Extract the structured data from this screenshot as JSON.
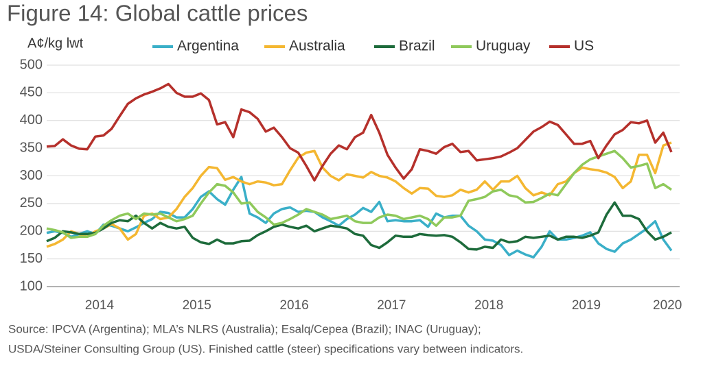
{
  "chart_data": {
    "type": "line",
    "title": "Figure 14: Global cattle prices",
    "y_label": "A¢/kg lwt",
    "source": [
      "Source: IPCVA (Argentina); MLA’s NLRS (Australia); Esalq/Cepea (Brazil); INAC (Uruguay);",
      "USDA/Steiner Consulting Group (US). Finished cattle (steer) specifications vary between indicators."
    ],
    "categories": [
      null,
      null,
      null,
      null,
      null,
      null,
      "2014",
      null,
      null,
      null,
      null,
      null,
      null,
      null,
      null,
      null,
      null,
      null,
      "2015",
      null,
      null,
      null,
      null,
      null,
      null,
      null,
      null,
      null,
      null,
      null,
      "2016",
      null,
      null,
      null,
      null,
      null,
      null,
      null,
      null,
      null,
      null,
      null,
      "2017",
      null,
      null,
      null,
      null,
      null,
      null,
      null,
      null,
      null,
      null,
      null,
      "2018",
      null,
      null,
      null,
      null,
      null,
      null,
      null,
      null,
      null,
      null,
      null,
      "2019",
      null,
      null,
      null,
      null,
      null,
      null,
      null,
      null,
      null,
      "2020",
      null
    ],
    "ylim": [
      100,
      500
    ],
    "yticks": [
      100,
      150,
      200,
      250,
      300,
      350,
      400,
      450,
      500
    ],
    "grid": true,
    "legend": "top",
    "series": [
      {
        "name": "Argentina",
        "color": "#3aafc8",
        "values": [
          197,
          200,
          197,
          190,
          195,
          200,
          195,
          212,
          210,
          205,
          200,
          207,
          215,
          222,
          235,
          233,
          225,
          225,
          240,
          262,
          272,
          258,
          248,
          275,
          298,
          232,
          225,
          215,
          232,
          240,
          243,
          235,
          237,
          235,
          225,
          218,
          210,
          222,
          230,
          242,
          235,
          253,
          218,
          220,
          218,
          218,
          220,
          208,
          232,
          225,
          228,
          228,
          210,
          200,
          185,
          183,
          175,
          157,
          165,
          158,
          153,
          172,
          200,
          185,
          185,
          188,
          192,
          198,
          178,
          168,
          163,
          178,
          185,
          195,
          205,
          218,
          185,
          165
        ]
      },
      {
        "name": "Australia",
        "color": "#f4b731",
        "values": [
          172,
          177,
          185,
          200,
          195,
          190,
          200,
          205,
          213,
          205,
          185,
          195,
          228,
          232,
          222,
          225,
          240,
          262,
          278,
          300,
          316,
          314,
          293,
          298,
          290,
          285,
          290,
          288,
          283,
          285,
          310,
          333,
          342,
          345,
          315,
          300,
          292,
          303,
          300,
          297,
          307,
          300,
          297,
          290,
          278,
          268,
          278,
          277,
          264,
          262,
          265,
          275,
          270,
          275,
          290,
          275,
          290,
          290,
          300,
          278,
          265,
          270,
          265,
          285,
          290,
          305,
          315,
          312,
          310,
          306,
          298,
          278,
          290,
          338,
          338,
          305,
          355,
          360
        ]
      },
      {
        "name": "Brazil",
        "color": "#1d6b3b",
        "values": [
          182,
          188,
          200,
          198,
          195,
          195,
          197,
          205,
          215,
          220,
          218,
          228,
          215,
          205,
          215,
          208,
          205,
          208,
          188,
          180,
          177,
          185,
          178,
          178,
          182,
          183,
          193,
          200,
          208,
          212,
          208,
          205,
          210,
          200,
          205,
          210,
          208,
          205,
          195,
          192,
          175,
          170,
          180,
          192,
          190,
          190,
          195,
          193,
          192,
          193,
          190,
          180,
          168,
          167,
          172,
          170,
          185,
          180,
          182,
          190,
          188,
          190,
          192,
          185,
          190,
          190,
          188,
          192,
          198,
          230,
          252,
          228,
          228,
          222,
          200,
          185,
          190,
          198
        ]
      },
      {
        "name": "Uruguay",
        "color": "#8fc95b",
        "values": [
          205,
          202,
          198,
          188,
          190,
          190,
          195,
          210,
          220,
          228,
          232,
          222,
          232,
          230,
          232,
          225,
          218,
          222,
          228,
          250,
          270,
          285,
          282,
          270,
          250,
          252,
          235,
          225,
          212,
          215,
          222,
          230,
          240,
          235,
          230,
          222,
          225,
          228,
          218,
          215,
          215,
          225,
          230,
          228,
          222,
          225,
          228,
          222,
          210,
          225,
          225,
          228,
          255,
          258,
          262,
          272,
          275,
          265,
          262,
          252,
          253,
          260,
          268,
          265,
          285,
          305,
          320,
          330,
          335,
          340,
          345,
          332,
          315,
          318,
          322,
          278,
          285,
          275
        ]
      },
      {
        "name": "US",
        "color": "#b5302b",
        "values": [
          353,
          354,
          366,
          355,
          349,
          348,
          371,
          373,
          385,
          408,
          430,
          440,
          447,
          452,
          458,
          466,
          450,
          443,
          443,
          449,
          437,
          393,
          397,
          370,
          420,
          415,
          403,
          380,
          387,
          370,
          350,
          342,
          318,
          292,
          318,
          340,
          355,
          348,
          370,
          378,
          410,
          378,
          338,
          315,
          295,
          312,
          348,
          345,
          340,
          352,
          358,
          343,
          345,
          328,
          330,
          332,
          335,
          342,
          350,
          365,
          380,
          388,
          398,
          392,
          375,
          358,
          358,
          363,
          332,
          355,
          375,
          383,
          397,
          395,
          400,
          360,
          378,
          343
        ]
      }
    ]
  }
}
